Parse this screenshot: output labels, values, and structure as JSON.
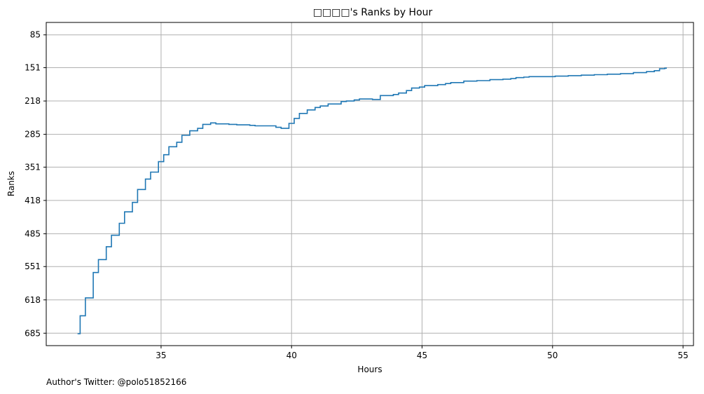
{
  "chart_data": {
    "type": "line",
    "style": "step",
    "title": "□□□□'s Ranks by Hour",
    "xlabel": "Hours",
    "ylabel": "Ranks",
    "xlim": [
      30.6,
      55.4
    ],
    "ylim": [
      710,
      60
    ],
    "y_inverted": true,
    "grid": true,
    "x_ticks": [
      35,
      40,
      45,
      50,
      55
    ],
    "y_ticks": [
      85,
      151,
      218,
      285,
      351,
      418,
      485,
      551,
      618,
      685
    ],
    "line_color": "#1f77b4",
    "grid_color": "#b0b0b0",
    "series": [
      {
        "x": [
          31.8,
          31.9,
          32.1,
          32.4,
          32.6,
          32.9,
          33.1,
          33.4,
          33.6,
          33.9,
          34.1,
          34.4,
          34.6,
          34.9,
          35.1,
          35.3,
          35.6,
          35.8,
          36.1,
          36.4,
          36.6,
          36.9,
          37.1,
          37.6,
          37.9,
          38.4,
          38.6,
          39.1,
          39.4,
          39.6,
          39.9,
          40.1,
          40.3,
          40.6,
          40.9,
          41.1,
          41.4,
          41.9,
          42.1,
          42.4,
          42.6,
          43.1,
          43.4,
          43.9,
          44.1,
          44.4,
          44.6,
          44.9,
          45.1,
          45.6,
          45.9,
          46.1,
          46.6,
          47.1,
          47.6,
          48.1,
          48.4,
          48.6,
          48.9,
          49.1,
          49.6,
          50.1,
          50.6,
          51.1,
          51.6,
          52.1,
          52.6,
          53.1,
          53.6,
          53.9,
          54.1,
          54.3
        ],
        "y": [
          686,
          650,
          614,
          563,
          537,
          511,
          488,
          464,
          441,
          422,
          396,
          375,
          361,
          340,
          326,
          310,
          301,
          287,
          278,
          273,
          265,
          262,
          264,
          265,
          266,
          267,
          268,
          268,
          271,
          273,
          263,
          253,
          243,
          236,
          231,
          228,
          224,
          219,
          218,
          216,
          214,
          215,
          207,
          205,
          202,
          197,
          192,
          190,
          187,
          185,
          183,
          181,
          178,
          177,
          175,
          174,
          173,
          171,
          170,
          169,
          169,
          168,
          167,
          166,
          165,
          164,
          163,
          161,
          159,
          157,
          153,
          152
        ]
      }
    ]
  },
  "footer_note": "Author's Twitter: @polo51852166"
}
